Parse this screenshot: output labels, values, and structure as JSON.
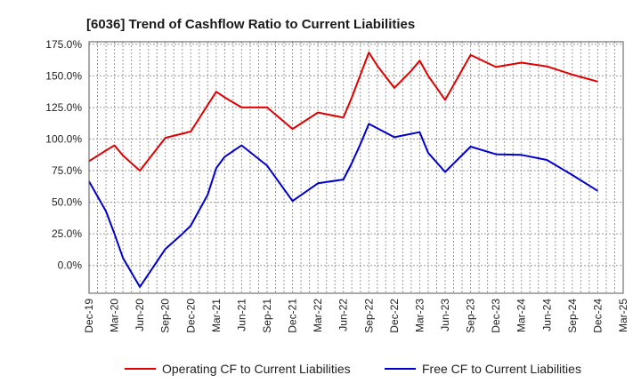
{
  "chart_data": {
    "type": "line",
    "title": "[6036]  Trend of Cashflow Ratio to Current Liabilities",
    "xlabel": "",
    "ylabel": "",
    "x_ticks": [
      "Dec-19",
      "Mar-20",
      "Jun-20",
      "Sep-20",
      "Dec-20",
      "Mar-21",
      "Jun-21",
      "Sep-21",
      "Dec-21",
      "Mar-22",
      "Jun-22",
      "Sep-22",
      "Dec-22",
      "Mar-23",
      "Jun-23",
      "Sep-23",
      "Dec-23",
      "Mar-24",
      "Jun-24",
      "Sep-24",
      "Dec-24",
      "Mar-25"
    ],
    "y_ticks": [
      "0.0%",
      "25.0%",
      "50.0%",
      "75.0%",
      "100.0%",
      "125.0%",
      "150.0%",
      "175.0%"
    ],
    "y_tick_values": [
      0,
      25,
      50,
      75,
      100,
      125,
      150,
      175
    ],
    "ylim": [
      -22,
      177
    ],
    "grid": true,
    "legend_position": "bottom",
    "series": [
      {
        "name": "Operating CF to Current Liabilities",
        "color": "#e00000",
        "x": [
          "Dec-19",
          "Feb-20",
          "Mar-20",
          "Apr-20",
          "Jun-20",
          "Sep-20",
          "Dec-20",
          "Feb-21",
          "Mar-21",
          "Apr-21",
          "Jun-21",
          "Sep-21",
          "Dec-21",
          "Mar-22",
          "Jun-22",
          "Jul-22",
          "Sep-22",
          "Oct-22",
          "Dec-22",
          "Feb-23",
          "Mar-23",
          "Apr-23",
          "Jun-23",
          "Sep-23",
          "Dec-23",
          "Mar-24",
          "Jun-24",
          "Sep-24",
          "Dec-24"
        ],
        "values": [
          82.5,
          91,
          95,
          87,
          75,
          101,
          106,
          127,
          137.5,
          133,
          125,
          125,
          108,
          121,
          117,
          133,
          168.5,
          158,
          140.5,
          154,
          162,
          150,
          131,
          166.5,
          157,
          160.5,
          157.5,
          151,
          145.5
        ]
      },
      {
        "name": "Free CF to Current Liabilities",
        "color": "#0000cc",
        "x": [
          "Dec-19",
          "Feb-20",
          "Mar-20",
          "Apr-20",
          "Jun-20",
          "Aug-20",
          "Sep-20",
          "Nov-20",
          "Dec-20",
          "Feb-21",
          "Mar-21",
          "Apr-21",
          "Jun-21",
          "Sep-21",
          "Dec-21",
          "Mar-22",
          "Jun-22",
          "Jul-22",
          "Aug-22",
          "Sep-22",
          "Dec-22",
          "Mar-23",
          "Apr-23",
          "Jun-23",
          "Sep-23",
          "Dec-23",
          "Mar-24",
          "Jun-24",
          "Sep-24",
          "Dec-24"
        ],
        "values": [
          66.5,
          43,
          25,
          6,
          -17,
          3,
          13,
          25,
          31.5,
          56,
          77,
          86,
          95,
          79,
          51,
          65,
          68,
          81,
          96,
          112,
          101.5,
          105.5,
          89,
          74,
          94,
          88,
          87.5,
          83.5,
          71.5,
          59
        ]
      }
    ]
  }
}
